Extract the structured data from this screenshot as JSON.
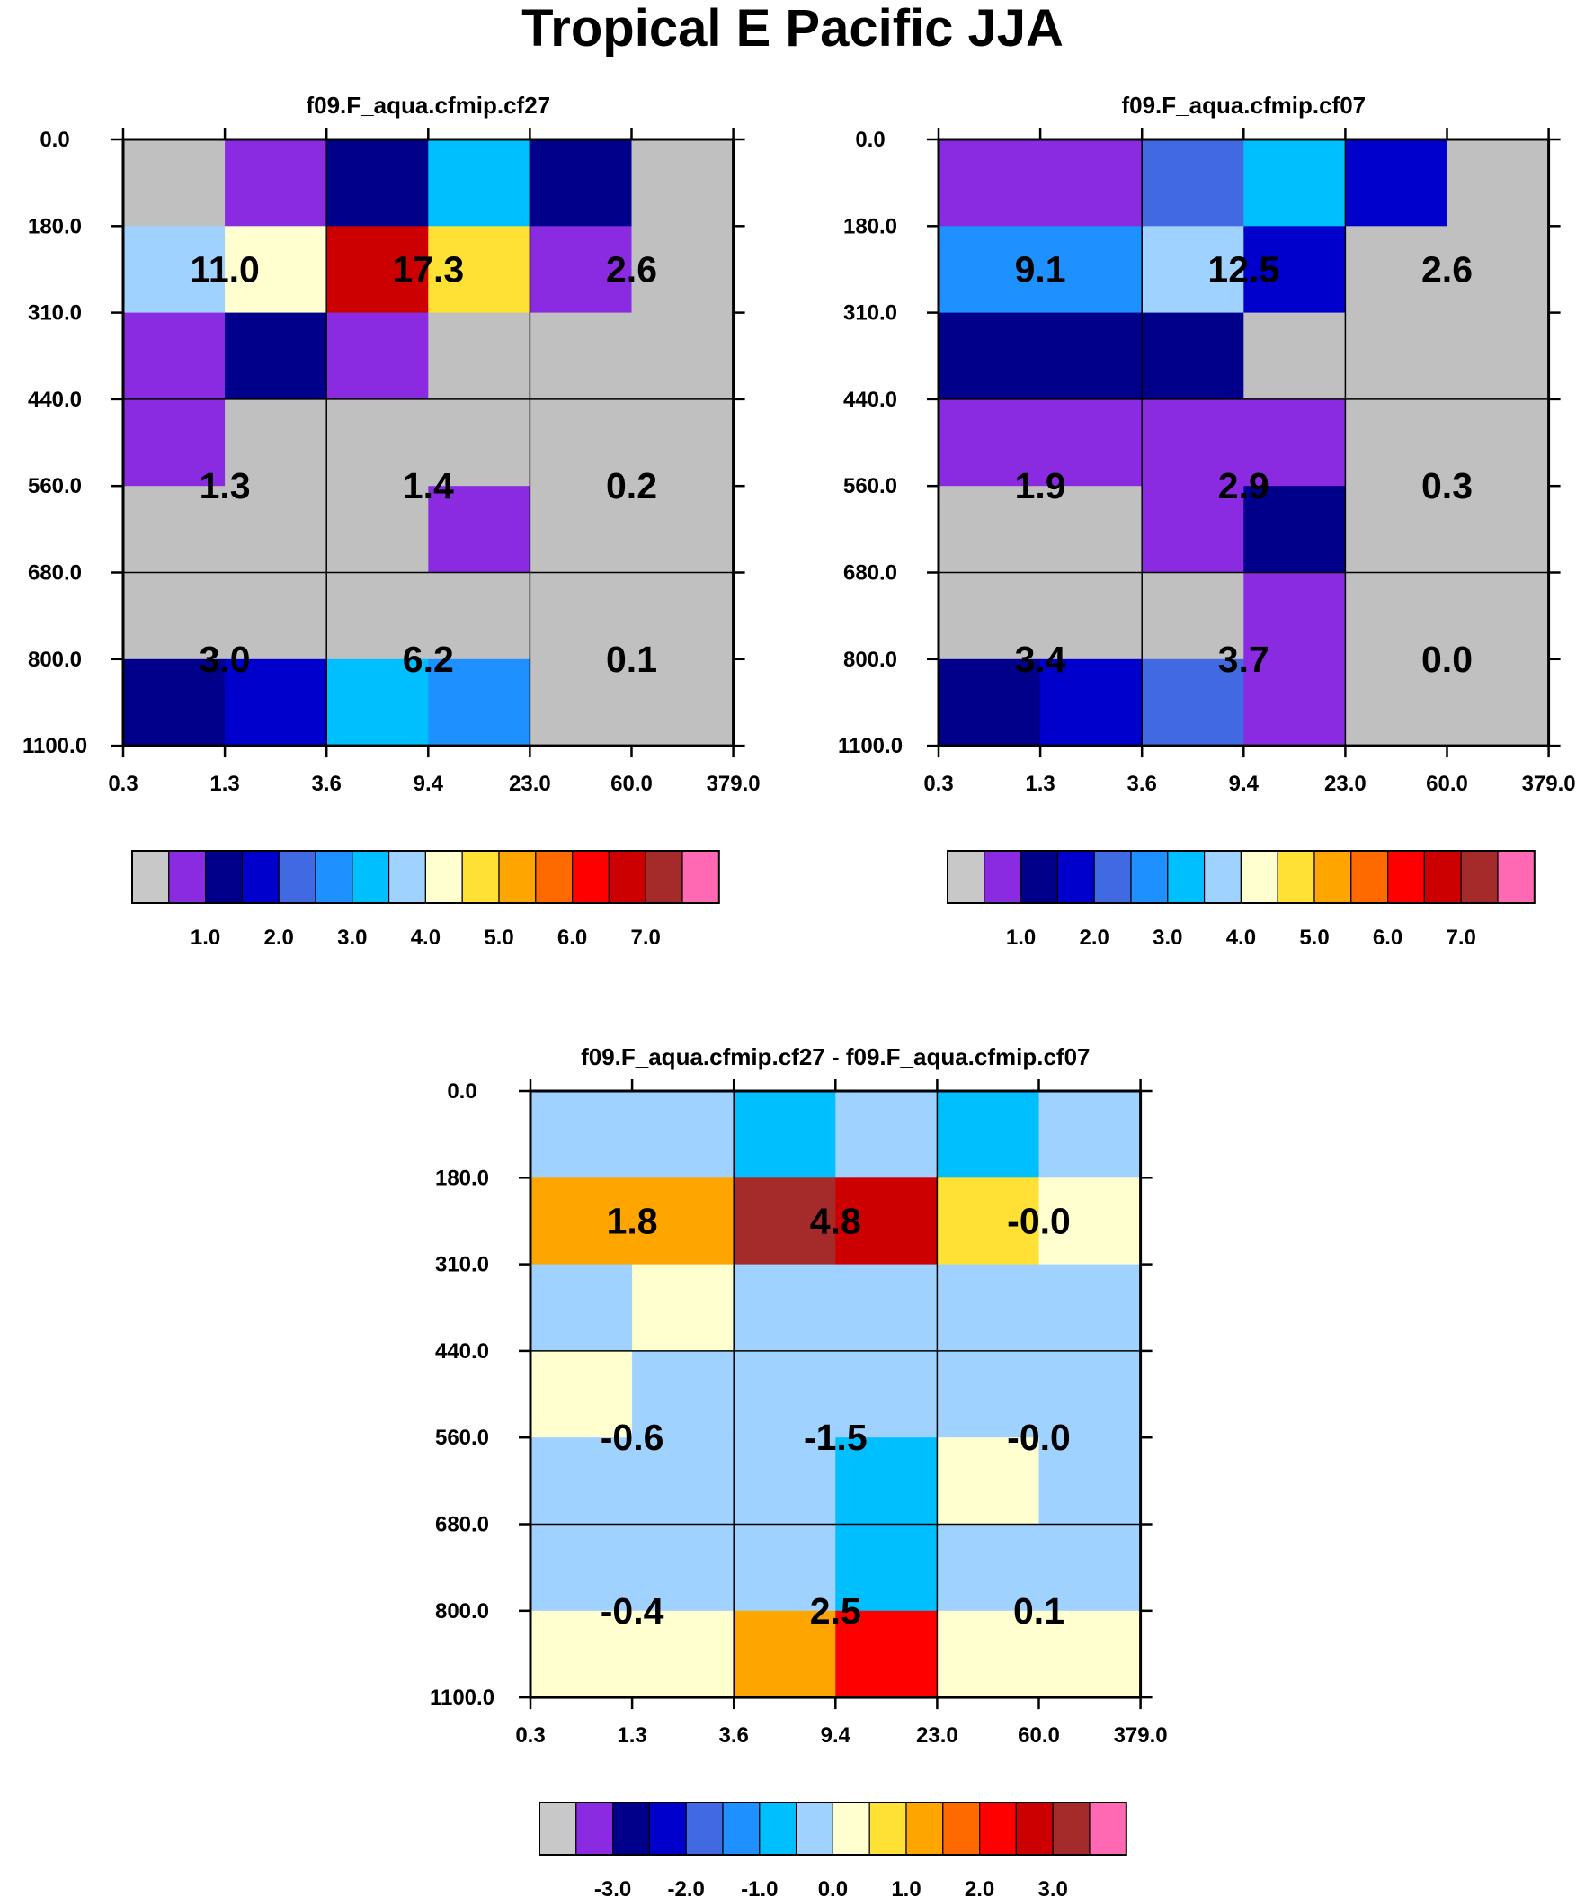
{
  "title": "Tropical E Pacific JJA",
  "chart_data": [
    {
      "type": "heatmap",
      "title": "f09.F_aqua.cfmip.cf27",
      "x_ticks": [
        "0.3",
        "1.3",
        "3.6",
        "9.4",
        "23.0",
        "60.0",
        "379.0"
      ],
      "y_ticks": [
        "0.0",
        "180.0",
        "310.0",
        "440.0",
        "560.0",
        "680.0",
        "800.0",
        "1100.0"
      ],
      "cell_colors": [
        [
          "#c0c0c0",
          "#8a2be2",
          "#00008b",
          "#00bfff",
          "#00008b",
          "#c0c0c0"
        ],
        [
          "#a0d2ff",
          "#ffffd0",
          "#cc0000",
          "#ffe135",
          "#8a2be2",
          "#c0c0c0"
        ],
        [
          "#8a2be2",
          "#00008b",
          "#8a2be2",
          "#c0c0c0",
          "#c0c0c0",
          "#c0c0c0"
        ],
        [
          "#8a2be2",
          "#c0c0c0",
          "#c0c0c0",
          "#c0c0c0",
          "#c0c0c0",
          "#c0c0c0"
        ],
        [
          "#c0c0c0",
          "#c0c0c0",
          "#c0c0c0",
          "#8a2be2",
          "#c0c0c0",
          "#c0c0c0"
        ],
        [
          "#c0c0c0",
          "#c0c0c0",
          "#c0c0c0",
          "#c0c0c0",
          "#c0c0c0",
          "#c0c0c0"
        ],
        [
          "#00008b",
          "#0000cd",
          "#00bfff",
          "#1e90ff",
          "#c0c0c0",
          "#c0c0c0"
        ]
      ],
      "group_values": [
        [
          "11.0",
          "17.3",
          "2.6"
        ],
        [
          "1.3",
          "1.4",
          "0.2"
        ],
        [
          "3.0",
          "6.2",
          "0.1"
        ]
      ],
      "colorbar": {
        "colors": [
          "#c8c8c8",
          "#8a2be2",
          "#00008b",
          "#0000cd",
          "#4169e1",
          "#1e90ff",
          "#00bfff",
          "#a0d2ff",
          "#ffffd0",
          "#ffe135",
          "#ffa500",
          "#ff6a00",
          "#ff0000",
          "#cc0000",
          "#a52a2a",
          "#ff69b4"
        ],
        "labels": [
          "1.0",
          "2.0",
          "3.0",
          "4.0",
          "5.0",
          "6.0",
          "7.0"
        ],
        "label_positions": [
          2,
          4,
          6,
          8,
          10,
          12,
          14
        ]
      }
    },
    {
      "type": "heatmap",
      "title": "f09.F_aqua.cfmip.cf07",
      "x_ticks": [
        "0.3",
        "1.3",
        "3.6",
        "9.4",
        "23.0",
        "60.0",
        "379.0"
      ],
      "y_ticks": [
        "0.0",
        "180.0",
        "310.0",
        "440.0",
        "560.0",
        "680.0",
        "800.0",
        "1100.0"
      ],
      "cell_colors": [
        [
          "#8a2be2",
          "#8a2be2",
          "#4169e1",
          "#00bfff",
          "#0000cd",
          "#c0c0c0"
        ],
        [
          "#1e90ff",
          "#1e90ff",
          "#a0d2ff",
          "#0000cd",
          "#c0c0c0",
          "#c0c0c0"
        ],
        [
          "#00008b",
          "#00008b",
          "#00008b",
          "#c0c0c0",
          "#c0c0c0",
          "#c0c0c0"
        ],
        [
          "#8a2be2",
          "#8a2be2",
          "#8a2be2",
          "#8a2be2",
          "#c0c0c0",
          "#c0c0c0"
        ],
        [
          "#c0c0c0",
          "#c0c0c0",
          "#8a2be2",
          "#00008b",
          "#c0c0c0",
          "#c0c0c0"
        ],
        [
          "#c0c0c0",
          "#c0c0c0",
          "#c0c0c0",
          "#8a2be2",
          "#c0c0c0",
          "#c0c0c0"
        ],
        [
          "#00008b",
          "#0000cd",
          "#4169e1",
          "#8a2be2",
          "#c0c0c0",
          "#c0c0c0"
        ]
      ],
      "group_values": [
        [
          "9.1",
          "12.5",
          "2.6"
        ],
        [
          "1.9",
          "2.9",
          "0.3"
        ],
        [
          "3.4",
          "3.7",
          "0.0"
        ]
      ],
      "colorbar": {
        "colors": [
          "#c8c8c8",
          "#8a2be2",
          "#00008b",
          "#0000cd",
          "#4169e1",
          "#1e90ff",
          "#00bfff",
          "#a0d2ff",
          "#ffffd0",
          "#ffe135",
          "#ffa500",
          "#ff6a00",
          "#ff0000",
          "#cc0000",
          "#a52a2a",
          "#ff69b4"
        ],
        "labels": [
          "1.0",
          "2.0",
          "3.0",
          "4.0",
          "5.0",
          "6.0",
          "7.0"
        ],
        "label_positions": [
          2,
          4,
          6,
          8,
          10,
          12,
          14
        ]
      }
    },
    {
      "type": "heatmap",
      "title": "f09.F_aqua.cfmip.cf27 - f09.F_aqua.cfmip.cf07",
      "x_ticks": [
        "0.3",
        "1.3",
        "3.6",
        "9.4",
        "23.0",
        "60.0",
        "379.0"
      ],
      "y_ticks": [
        "0.0",
        "180.0",
        "310.0",
        "440.0",
        "560.0",
        "680.0",
        "800.0",
        "1100.0"
      ],
      "cell_colors": [
        [
          "#a0d2ff",
          "#a0d2ff",
          "#00bfff",
          "#a0d2ff",
          "#00bfff",
          "#a0d2ff"
        ],
        [
          "#ffa500",
          "#ffa500",
          "#a52a2a",
          "#cc0000",
          "#ffe135",
          "#ffffd0"
        ],
        [
          "#a0d2ff",
          "#ffffd0",
          "#a0d2ff",
          "#a0d2ff",
          "#a0d2ff",
          "#a0d2ff"
        ],
        [
          "#ffffd0",
          "#a0d2ff",
          "#a0d2ff",
          "#a0d2ff",
          "#a0d2ff",
          "#a0d2ff"
        ],
        [
          "#a0d2ff",
          "#a0d2ff",
          "#a0d2ff",
          "#00bfff",
          "#ffffd0",
          "#a0d2ff"
        ],
        [
          "#a0d2ff",
          "#a0d2ff",
          "#a0d2ff",
          "#00bfff",
          "#a0d2ff",
          "#a0d2ff"
        ],
        [
          "#ffffd0",
          "#ffffd0",
          "#ffa500",
          "#ff0000",
          "#ffffd0",
          "#ffffd0"
        ]
      ],
      "group_values": [
        [
          "1.8",
          "4.8",
          "-0.0"
        ],
        [
          "-0.6",
          "-1.5",
          "-0.0"
        ],
        [
          "-0.4",
          "2.5",
          "0.1"
        ]
      ],
      "colorbar": {
        "colors": [
          "#c8c8c8",
          "#8a2be2",
          "#00008b",
          "#0000cd",
          "#4169e1",
          "#1e90ff",
          "#00bfff",
          "#a0d2ff",
          "#ffffd0",
          "#ffe135",
          "#ffa500",
          "#ff6a00",
          "#ff0000",
          "#cc0000",
          "#a52a2a",
          "#ff69b4"
        ],
        "labels": [
          "-3.0",
          "-2.0",
          "-1.0",
          "0.0",
          "1.0",
          "2.0",
          "3.0"
        ],
        "label_positions": [
          2,
          4,
          6,
          8,
          10,
          12,
          14
        ]
      }
    }
  ]
}
